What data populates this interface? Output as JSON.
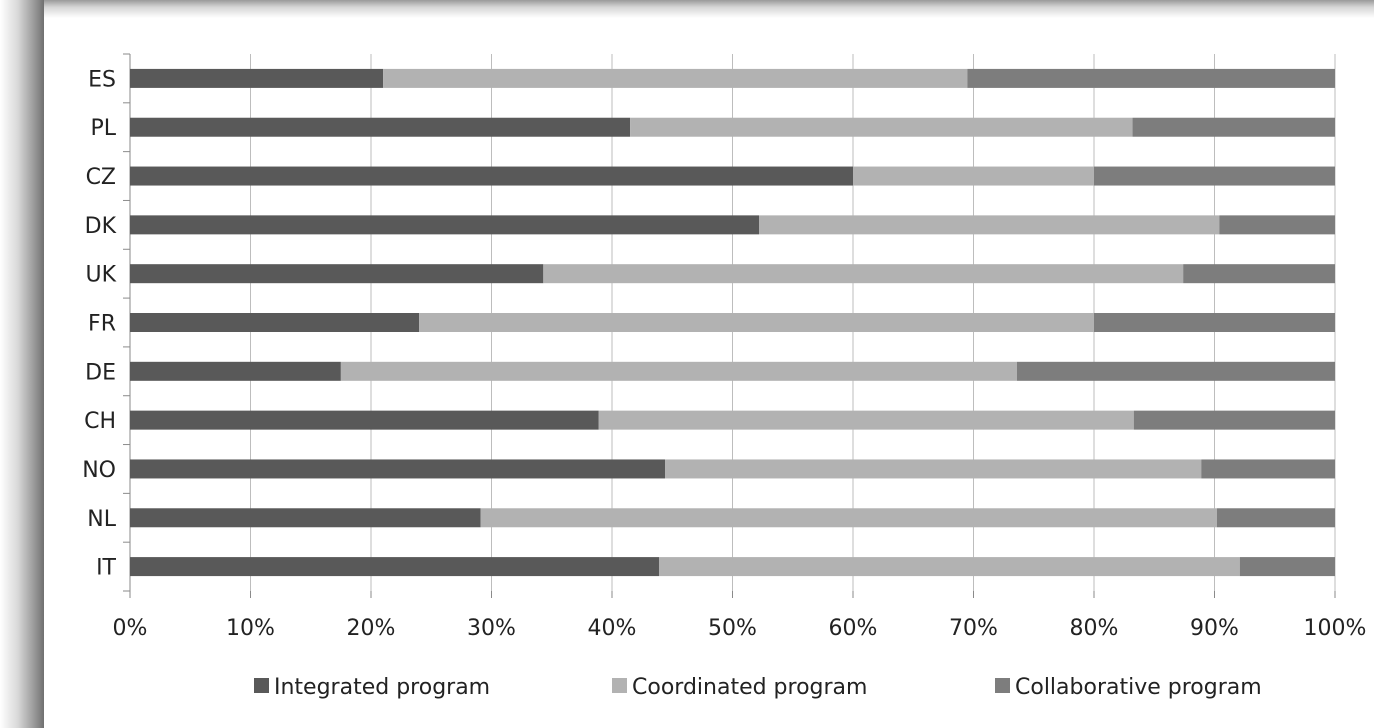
{
  "chart_data": {
    "type": "bar",
    "orientation": "horizontal",
    "stacked": "percent",
    "categories": [
      "ES",
      "PL",
      "CZ",
      "DK",
      "UK",
      "FR",
      "DE",
      "CH",
      "NO",
      "NL",
      "IT"
    ],
    "series": [
      {
        "name": "Integrated program",
        "color": "#595959",
        "values": [
          21,
          41.5,
          60,
          52.2,
          34.3,
          24,
          17.5,
          38.9,
          44.4,
          29.1,
          43.9
        ]
      },
      {
        "name": "Coordinated program",
        "color": "#b2b2b2",
        "values": [
          48.5,
          41.7,
          20,
          38.2,
          53.1,
          56,
          56.1,
          44.4,
          44.5,
          61.1,
          48.2
        ]
      },
      {
        "name": "Collaborative program",
        "color": "#7d7d7d",
        "values": [
          30.5,
          16.8,
          20,
          9.6,
          12.6,
          20,
          26.4,
          16.7,
          11.1,
          9.8,
          7.9
        ]
      }
    ],
    "xlim": [
      0,
      100
    ],
    "x_ticks": [
      "0%",
      "10%",
      "20%",
      "30%",
      "40%",
      "50%",
      "60%",
      "70%",
      "80%",
      "90%",
      "100%"
    ],
    "grid": "vertical",
    "legend": "bottom",
    "title": "",
    "xlabel": "",
    "ylabel": ""
  }
}
